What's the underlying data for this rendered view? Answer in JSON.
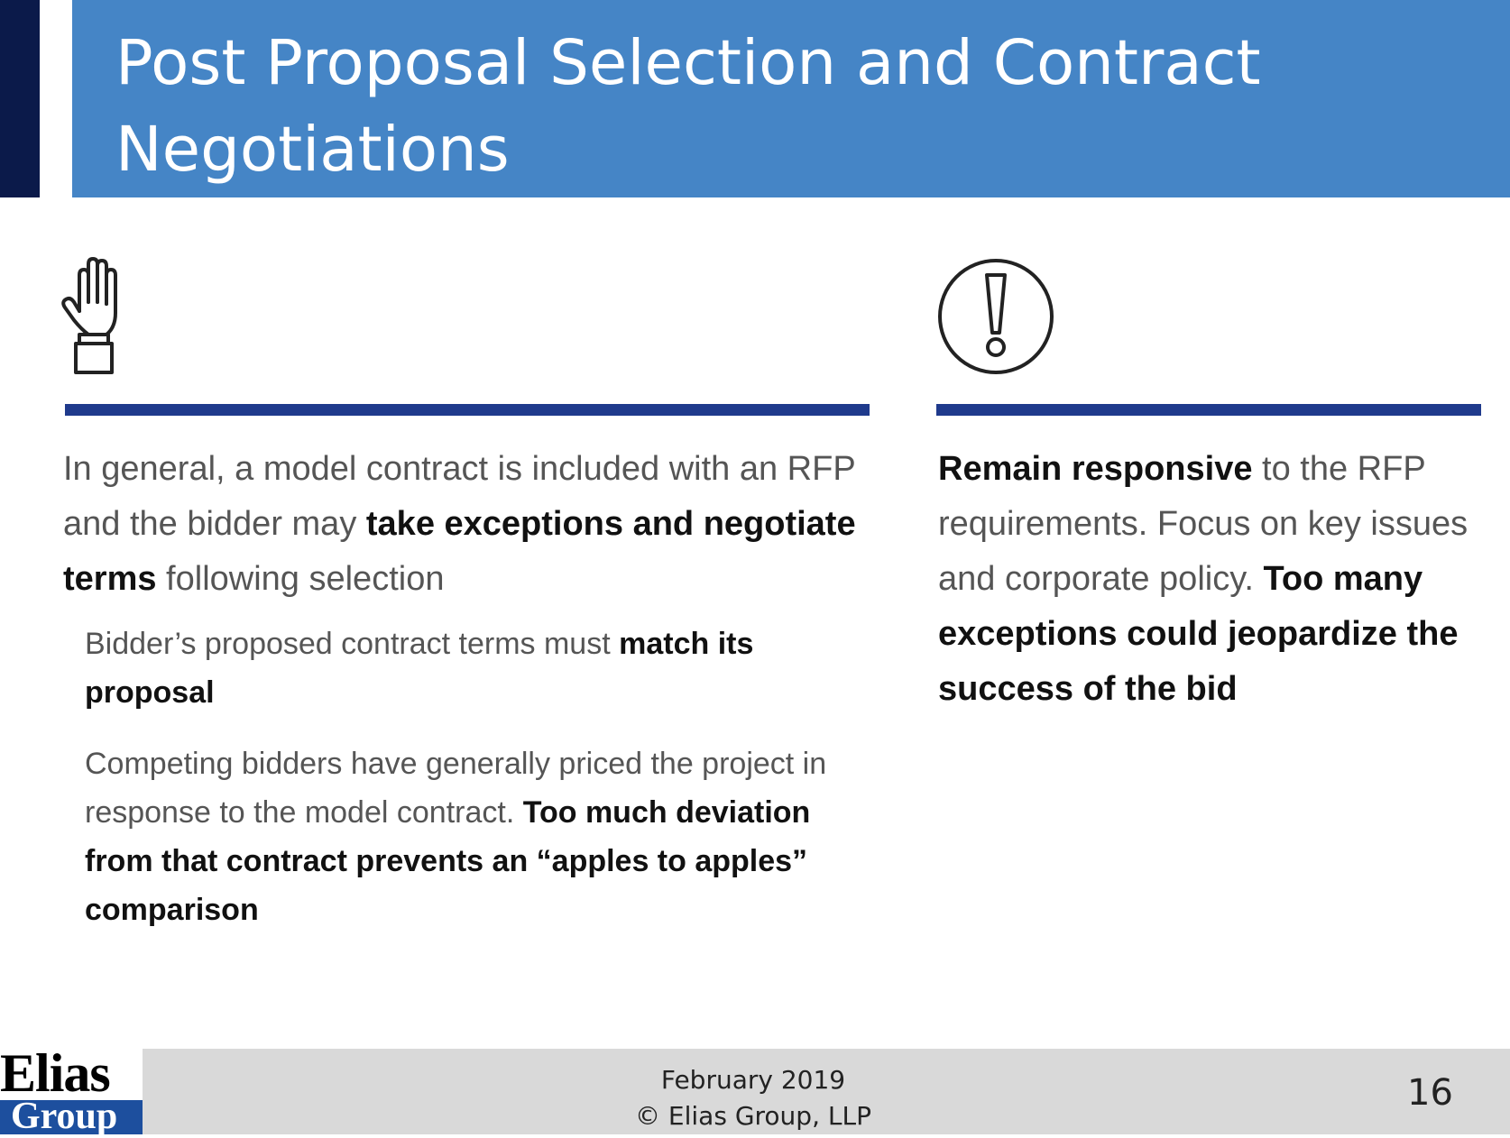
{
  "slide": {
    "title": "Post Proposal Selection and Contract Negotiations",
    "left": {
      "icon": "raised-hand-icon",
      "main": {
        "t1": "In general, a model contract is included with an RFP and the bidder may ",
        "b1": "take exceptions and negotiate terms",
        "t2": " following selection"
      },
      "bullet1": {
        "t1": "Bidder’s proposed contract terms must ",
        "b1": "match its proposal"
      },
      "bullet2": {
        "t1": "Competing bidders have generally priced the project in response to the model contract.  ",
        "b1": "Too much deviation from that contract prevents an “apples to apples” comparison"
      }
    },
    "right": {
      "icon": "exclamation-circle-icon",
      "main": {
        "b1": "Remain responsive",
        "t1": " to the RFP requirements.  Focus on key issues and corporate policy. ",
        "b2": "Too many exceptions could jeopardize the success of the bid"
      }
    }
  },
  "footer": {
    "logo_top": "Elias",
    "logo_bottom": "Group",
    "date": "February 2019",
    "copyright": "© Elias Group, LLP",
    "page_number": "16"
  },
  "colors": {
    "title_bar": "#4585c6",
    "title_accent": "#0b1a4a",
    "divider": "#1f3a8c",
    "footer_bg": "#d9d9d9",
    "logo_blue": "#1d4f9e"
  }
}
